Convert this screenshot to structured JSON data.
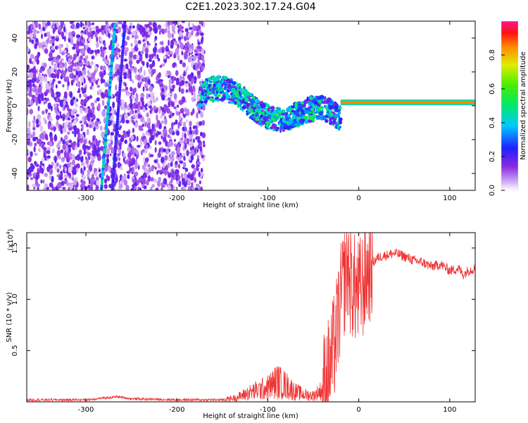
{
  "title": "C2E1.2023.302.17.24.G04",
  "chart_data": [
    {
      "type": "heatmap",
      "xlabel": "Height of straight line (km)",
      "ylabel": "Frequency (Hz)",
      "xlim": [
        -365,
        128
      ],
      "ylim": [
        -50,
        50
      ],
      "xticks": [
        -300,
        -200,
        -100,
        0,
        100
      ],
      "yticks": [
        -40,
        -20,
        0,
        20,
        40
      ],
      "colorbar": {
        "label": "Normalized spectral amplitude",
        "range": [
          0.0,
          1.0
        ],
        "ticks": [
          0.0,
          0.2,
          0.4,
          0.6,
          0.8
        ],
        "tick_labels": [
          "0.0",
          "0.2",
          "0.4",
          "0.6",
          "0.8"
        ]
      },
      "features": [
        {
          "kind": "noise",
          "x": [
            -365,
            -170
          ],
          "y": [
            -50,
            50
          ],
          "amplitude": 0.15
        },
        {
          "kind": "streak",
          "x": [
            -283,
            -268
          ],
          "y": [
            -50,
            48
          ],
          "amplitude": 0.35
        },
        {
          "kind": "streak",
          "x": [
            -271,
            -257
          ],
          "y": [
            -50,
            50
          ],
          "amplitude": 0.2
        },
        {
          "kind": "band",
          "x": [
            -175,
            -20
          ],
          "y": [
            7,
            -10
          ],
          "amplitude": 0.45
        },
        {
          "kind": "line",
          "x": [
            -20,
            128
          ],
          "y": [
            2,
            2
          ],
          "amplitude": 0.85
        }
      ]
    },
    {
      "type": "line",
      "xlabel": "Height of straight line (km)",
      "ylabel": "SNR (10 * v/v)",
      "y_multiplier": "(x10",
      "y_multiplier_exp": "4",
      "y_multiplier_close": ")",
      "xlim": [
        -365,
        128
      ],
      "ylim": [
        0,
        1.65
      ],
      "xticks": [
        -300,
        -200,
        -100,
        0,
        100
      ],
      "yticks": [
        0.5,
        1.0,
        1.5
      ],
      "ytick_labels": [
        "0.5",
        "1.0",
        "1.5"
      ],
      "series": [
        {
          "color": "#ee3333",
          "x": [
            -365,
            -300,
            -265,
            -250,
            -200,
            -150,
            -135,
            -120,
            -100,
            -90,
            -80,
            -70,
            -60,
            -50,
            -40,
            -35,
            -30,
            -25,
            -20,
            -15,
            -12,
            -10,
            -5,
            0,
            5,
            10,
            15,
            20,
            25,
            30,
            40,
            50,
            60,
            70,
            80,
            90,
            100,
            110,
            115,
            120,
            128
          ],
          "y": [
            0.02,
            0.02,
            0.05,
            0.03,
            0.02,
            0.02,
            0.04,
            0.09,
            0.14,
            0.2,
            0.16,
            0.1,
            0.07,
            0.06,
            0.12,
            0.25,
            0.38,
            0.65,
            0.98,
            1.22,
            1.35,
            1.2,
            1.1,
            1.05,
            1.15,
            1.28,
            1.35,
            1.4,
            1.42,
            1.43,
            1.45,
            1.42,
            1.38,
            1.36,
            1.32,
            1.34,
            1.28,
            1.3,
            1.24,
            1.28,
            1.3
          ]
        }
      ]
    }
  ]
}
